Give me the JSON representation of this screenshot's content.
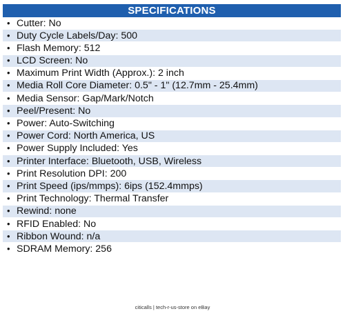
{
  "header": {
    "title": "SPECIFICATIONS"
  },
  "specs": [
    "Cutter: No",
    "Duty Cycle Labels/Day: 500",
    "Flash Memory: 512",
    "LCD Screen: No",
    "Maximum Print Width (Approx.): 2 inch",
    "Media Roll Core Diameter: 0.5\" - 1\" (12.7mm - 25.4mm)",
    "Media Sensor: Gap/Mark/Notch",
    "Peel/Present: No",
    "Power: Auto-Switching",
    "Power Cord: North America, US",
    "Power Supply Included: Yes",
    "Printer Interface: Bluetooth, USB, Wireless",
    "Print Resolution DPI: 200",
    "Print Speed (ips/mmps): 6ips (152.4mmps)",
    "Print Technology: Thermal Transfer",
    "Rewind: none",
    "RFID Enabled: No",
    "Ribbon Wound: n/a",
    "SDRAM Memory: 256"
  ],
  "bullet": "•",
  "footer": {
    "credit": "citicalls | tech-r-us-store on eBay"
  },
  "colors": {
    "header_bg": "#1f5fae",
    "stripe_bg": "#dde6f3"
  }
}
